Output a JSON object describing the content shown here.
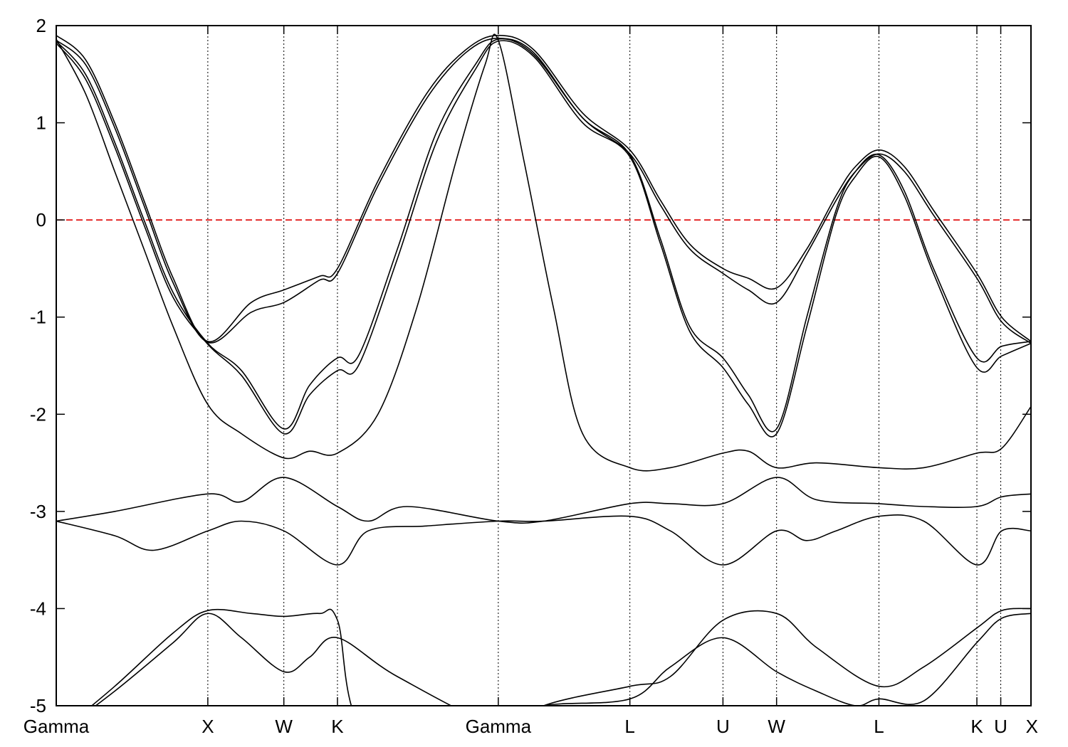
{
  "chart_data": {
    "type": "line",
    "title": "",
    "xlabel": "",
    "ylabel": "",
    "ylim": [
      -5,
      2
    ],
    "yticks": [
      -5,
      -4,
      -3,
      -2,
      -1,
      0,
      1,
      2
    ],
    "xlim": [
      0,
      10
    ],
    "kpath": [
      {
        "x": 0.0,
        "label": "Gamma"
      },
      {
        "x": 1.555,
        "label": "X"
      },
      {
        "x": 2.335,
        "label": "W"
      },
      {
        "x": 2.885,
        "label": "K"
      },
      {
        "x": 4.535,
        "label": "Gamma"
      },
      {
        "x": 5.885,
        "label": "L"
      },
      {
        "x": 6.84,
        "label": "U"
      },
      {
        "x": 7.39,
        "label": "W"
      },
      {
        "x": 8.44,
        "label": "L"
      },
      {
        "x": 9.445,
        "label": "K"
      },
      {
        "x": 9.69,
        "label": "U"
      },
      {
        "x": 10.0,
        "label": "X"
      }
    ],
    "fermi_level": 0,
    "colors": {
      "bands": "#000000",
      "fermi": "#e00000"
    },
    "grid": "vertical dotted lines at high-symmetry points",
    "series": [
      {
        "values": [
          [
            0,
            1.9
          ],
          [
            0.3,
            1.65
          ],
          [
            0.6,
            1.0
          ],
          [
            0.9,
            0.2
          ],
          [
            1.2,
            -0.6
          ],
          [
            1.555,
            -1.25
          ],
          [
            2.0,
            -0.85
          ],
          [
            2.335,
            -0.72
          ],
          [
            2.7,
            -0.58
          ],
          [
            2.885,
            -0.5
          ],
          [
            3.3,
            0.4
          ],
          [
            3.8,
            1.3
          ],
          [
            4.2,
            1.75
          ],
          [
            4.535,
            1.9
          ],
          [
            4.9,
            1.75
          ],
          [
            5.4,
            1.1
          ],
          [
            5.885,
            0.72
          ],
          [
            6.2,
            0.2
          ],
          [
            6.5,
            -0.25
          ],
          [
            6.84,
            -0.5
          ],
          [
            7.1,
            -0.6
          ],
          [
            7.39,
            -0.7
          ],
          [
            7.7,
            -0.3
          ],
          [
            8.0,
            0.25
          ],
          [
            8.2,
            0.55
          ],
          [
            8.44,
            0.72
          ],
          [
            8.7,
            0.55
          ],
          [
            9.0,
            0.1
          ],
          [
            9.445,
            -0.55
          ],
          [
            9.7,
            -1.0
          ],
          [
            10.0,
            -1.25
          ]
        ]
      },
      {
        "values": [
          [
            0,
            1.85
          ],
          [
            0.3,
            1.6
          ],
          [
            0.6,
            0.95
          ],
          [
            0.9,
            0.15
          ],
          [
            1.2,
            -0.65
          ],
          [
            1.555,
            -1.26
          ],
          [
            2.0,
            -0.95
          ],
          [
            2.335,
            -0.85
          ],
          [
            2.7,
            -0.62
          ],
          [
            2.885,
            -0.55
          ],
          [
            3.3,
            0.35
          ],
          [
            3.8,
            1.25
          ],
          [
            4.2,
            1.72
          ],
          [
            4.535,
            1.87
          ],
          [
            4.9,
            1.72
          ],
          [
            5.4,
            1.05
          ],
          [
            5.885,
            0.68
          ],
          [
            6.2,
            0.15
          ],
          [
            6.5,
            -0.3
          ],
          [
            6.84,
            -0.55
          ],
          [
            7.1,
            -0.72
          ],
          [
            7.39,
            -0.85
          ],
          [
            7.7,
            -0.35
          ],
          [
            8.0,
            0.2
          ],
          [
            8.2,
            0.5
          ],
          [
            8.44,
            0.68
          ],
          [
            8.7,
            0.5
          ],
          [
            9.0,
            0.05
          ],
          [
            9.445,
            -0.6
          ],
          [
            9.7,
            -1.05
          ],
          [
            10.0,
            -1.27
          ]
        ]
      },
      {
        "values": [
          [
            0,
            1.84
          ],
          [
            0.3,
            1.5
          ],
          [
            0.6,
            0.8
          ],
          [
            0.9,
            0.0
          ],
          [
            1.2,
            -0.75
          ],
          [
            1.555,
            -1.27
          ],
          [
            1.9,
            -1.55
          ],
          [
            2.335,
            -2.15
          ],
          [
            2.6,
            -1.7
          ],
          [
            2.885,
            -1.42
          ],
          [
            3.1,
            -1.4
          ],
          [
            3.5,
            -0.3
          ],
          [
            3.9,
            0.9
          ],
          [
            4.3,
            1.6
          ],
          [
            4.535,
            1.86
          ],
          [
            4.9,
            1.7
          ],
          [
            5.4,
            1.05
          ],
          [
            5.885,
            0.67
          ],
          [
            6.2,
            -0.2
          ],
          [
            6.5,
            -1.1
          ],
          [
            6.84,
            -1.42
          ],
          [
            7.1,
            -1.8
          ],
          [
            7.39,
            -2.15
          ],
          [
            7.7,
            -1.0
          ],
          [
            8.0,
            0.1
          ],
          [
            8.2,
            0.5
          ],
          [
            8.44,
            0.67
          ],
          [
            8.7,
            0.3
          ],
          [
            9.0,
            -0.5
          ],
          [
            9.445,
            -1.42
          ],
          [
            9.7,
            -1.3
          ],
          [
            10.0,
            -1.25
          ]
        ]
      },
      {
        "values": [
          [
            0,
            1.82
          ],
          [
            0.3,
            1.45
          ],
          [
            0.6,
            0.75
          ],
          [
            0.9,
            -0.05
          ],
          [
            1.2,
            -0.8
          ],
          [
            1.555,
            -1.28
          ],
          [
            1.9,
            -1.6
          ],
          [
            2.335,
            -2.2
          ],
          [
            2.6,
            -1.8
          ],
          [
            2.885,
            -1.55
          ],
          [
            3.1,
            -1.5
          ],
          [
            3.5,
            -0.4
          ],
          [
            3.9,
            0.8
          ],
          [
            4.3,
            1.55
          ],
          [
            4.535,
            1.84
          ],
          [
            4.9,
            1.68
          ],
          [
            5.4,
            1.0
          ],
          [
            5.885,
            0.65
          ],
          [
            6.2,
            -0.25
          ],
          [
            6.5,
            -1.15
          ],
          [
            6.84,
            -1.52
          ],
          [
            7.1,
            -1.9
          ],
          [
            7.39,
            -2.2
          ],
          [
            7.7,
            -1.1
          ],
          [
            8.0,
            0.05
          ],
          [
            8.2,
            0.45
          ],
          [
            8.44,
            0.65
          ],
          [
            8.7,
            0.25
          ],
          [
            9.0,
            -0.55
          ],
          [
            9.445,
            -1.52
          ],
          [
            9.7,
            -1.4
          ],
          [
            10.0,
            -1.27
          ]
        ]
      },
      {
        "values": [
          [
            0,
            1.86
          ],
          [
            0.3,
            1.3
          ],
          [
            0.6,
            0.5
          ],
          [
            0.9,
            -0.3
          ],
          [
            1.2,
            -1.1
          ],
          [
            1.555,
            -1.9
          ],
          [
            1.9,
            -2.2
          ],
          [
            2.335,
            -2.45
          ],
          [
            2.6,
            -2.38
          ],
          [
            2.885,
            -2.4
          ],
          [
            3.3,
            -2.0
          ],
          [
            3.7,
            -0.9
          ],
          [
            4.1,
            0.6
          ],
          [
            4.4,
            1.6
          ],
          [
            4.535,
            1.85
          ],
          [
            4.8,
            0.6
          ],
          [
            5.1,
            -0.9
          ],
          [
            5.4,
            -2.2
          ],
          [
            5.885,
            -2.55
          ],
          [
            6.3,
            -2.55
          ],
          [
            6.84,
            -2.4
          ],
          [
            7.1,
            -2.38
          ],
          [
            7.39,
            -2.55
          ],
          [
            7.8,
            -2.5
          ],
          [
            8.44,
            -2.55
          ],
          [
            8.9,
            -2.55
          ],
          [
            9.445,
            -2.4
          ],
          [
            9.7,
            -2.35
          ],
          [
            10.0,
            -1.92
          ]
        ]
      },
      {
        "values": [
          [
            0,
            -3.1
          ],
          [
            0.6,
            -3.25
          ],
          [
            1.0,
            -3.4
          ],
          [
            1.555,
            -3.2
          ],
          [
            1.9,
            -3.1
          ],
          [
            2.335,
            -3.2
          ],
          [
            2.885,
            -3.55
          ],
          [
            3.2,
            -3.2
          ],
          [
            3.8,
            -3.15
          ],
          [
            4.535,
            -3.1
          ],
          [
            5.0,
            -3.1
          ],
          [
            5.885,
            -3.05
          ],
          [
            6.3,
            -3.2
          ],
          [
            6.84,
            -3.55
          ],
          [
            7.39,
            -3.2
          ],
          [
            7.7,
            -3.3
          ],
          [
            8.0,
            -3.2
          ],
          [
            8.44,
            -3.05
          ],
          [
            8.9,
            -3.1
          ],
          [
            9.445,
            -3.55
          ],
          [
            9.7,
            -3.2
          ],
          [
            10.0,
            -3.2
          ]
        ]
      },
      {
        "values": [
          [
            0,
            -3.1
          ],
          [
            0.6,
            -3.0
          ],
          [
            1.555,
            -2.82
          ],
          [
            1.9,
            -2.9
          ],
          [
            2.335,
            -2.65
          ],
          [
            2.885,
            -2.95
          ],
          [
            3.2,
            -3.1
          ],
          [
            3.6,
            -2.95
          ],
          [
            4.535,
            -3.1
          ],
          [
            5.0,
            -3.1
          ],
          [
            5.885,
            -2.92
          ],
          [
            6.3,
            -2.92
          ],
          [
            6.84,
            -2.92
          ],
          [
            7.39,
            -2.65
          ],
          [
            7.8,
            -2.88
          ],
          [
            8.44,
            -2.92
          ],
          [
            8.9,
            -2.95
          ],
          [
            9.445,
            -2.95
          ],
          [
            9.7,
            -2.85
          ],
          [
            10.0,
            -2.82
          ]
        ]
      },
      {
        "values": [
          [
            0,
            -5.3
          ],
          [
            0.6,
            -4.8
          ],
          [
            1.2,
            -4.25
          ],
          [
            1.555,
            -4.02
          ],
          [
            2.0,
            -4.05
          ],
          [
            2.335,
            -4.08
          ],
          [
            2.7,
            -4.05
          ],
          [
            2.885,
            -4.12
          ],
          [
            3.2,
            -5.3
          ],
          [
            4.535,
            -5.3
          ],
          [
            5.0,
            -5.0
          ],
          [
            5.885,
            -4.8
          ],
          [
            6.3,
            -4.7
          ],
          [
            6.84,
            -4.12
          ],
          [
            7.39,
            -4.05
          ],
          [
            7.8,
            -4.4
          ],
          [
            8.44,
            -4.8
          ],
          [
            8.9,
            -4.6
          ],
          [
            9.445,
            -4.2
          ],
          [
            9.7,
            -4.02
          ],
          [
            10.0,
            -4.0
          ]
        ]
      },
      {
        "values": [
          [
            0,
            -5.3
          ],
          [
            0.6,
            -4.85
          ],
          [
            1.2,
            -4.35
          ],
          [
            1.555,
            -4.05
          ],
          [
            1.9,
            -4.3
          ],
          [
            2.335,
            -4.65
          ],
          [
            2.6,
            -4.5
          ],
          [
            2.885,
            -4.3
          ],
          [
            3.5,
            -4.7
          ],
          [
            4.535,
            -5.2
          ],
          [
            5.0,
            -5.0
          ],
          [
            5.885,
            -4.93
          ],
          [
            6.3,
            -4.6
          ],
          [
            6.84,
            -4.3
          ],
          [
            7.39,
            -4.65
          ],
          [
            7.8,
            -4.85
          ],
          [
            8.2,
            -5.0
          ],
          [
            8.44,
            -4.93
          ],
          [
            8.9,
            -4.95
          ],
          [
            9.445,
            -4.35
          ],
          [
            9.7,
            -4.1
          ],
          [
            10.0,
            -4.05
          ]
        ]
      }
    ]
  }
}
